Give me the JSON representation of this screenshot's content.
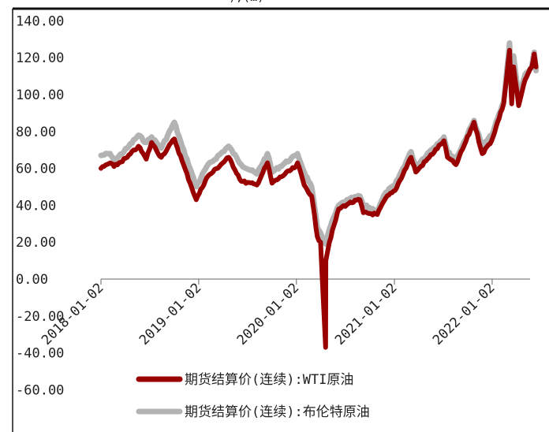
{
  "chart_data": {
    "type": "line",
    "title": "",
    "xlabel": "",
    "ylabel": "",
    "ylim": [
      -60,
      140
    ],
    "y_ticks": [
      {
        "value": 140,
        "label": "140.00"
      },
      {
        "value": 120,
        "label": "120.00"
      },
      {
        "value": 100,
        "label": "100.00"
      },
      {
        "value": 80,
        "label": "80.00"
      },
      {
        "value": 60,
        "label": "60.00"
      },
      {
        "value": 40,
        "label": "40.00"
      },
      {
        "value": 20,
        "label": "20.00"
      },
      {
        "value": 0,
        "label": "0.00"
      },
      {
        "value": -20,
        "label": "-20.00"
      },
      {
        "value": -40,
        "label": "-40.00"
      },
      {
        "value": -60,
        "label": "-60.00"
      }
    ],
    "x_ticks": [
      "2018-01-02",
      "2019-01-02",
      "2020-01-02",
      "2021-01-02",
      "2022-01-02"
    ],
    "xlim": [
      "2018-01-02",
      "2022-06-15"
    ],
    "legend_position": "bottom",
    "series": [
      {
        "name": "期货结算价(连续):布伦特原油",
        "color": "#b3b3b3",
        "points": [
          [
            "2018-01-02",
            67
          ],
          [
            "2018-02-05",
            68
          ],
          [
            "2018-02-20",
            64
          ],
          [
            "2018-04-10",
            71
          ],
          [
            "2018-05-22",
            78
          ],
          [
            "2018-06-20",
            74
          ],
          [
            "2018-07-10",
            77
          ],
          [
            "2018-08-15",
            71
          ],
          [
            "2018-10-03",
            85
          ],
          [
            "2018-11-01",
            72
          ],
          [
            "2018-12-01",
            60
          ],
          [
            "2018-12-24",
            50
          ],
          [
            "2019-02-01",
            61
          ],
          [
            "2019-04-24",
            72
          ],
          [
            "2019-06-10",
            62
          ],
          [
            "2019-08-07",
            57
          ],
          [
            "2019-09-16",
            68
          ],
          [
            "2019-10-03",
            58
          ],
          [
            "2019-12-31",
            67
          ],
          [
            "2020-01-06",
            68
          ],
          [
            "2020-01-31",
            58
          ],
          [
            "2020-02-28",
            50
          ],
          [
            "2020-03-20",
            28
          ],
          [
            "2020-04-01",
            25
          ],
          [
            "2020-04-21",
            19
          ],
          [
            "2020-05-04",
            27
          ],
          [
            "2020-06-08",
            40
          ],
          [
            "2020-07-15",
            43
          ],
          [
            "2020-08-26",
            45
          ],
          [
            "2020-09-08",
            40
          ],
          [
            "2020-10-30",
            37
          ],
          [
            "2020-12-01",
            47
          ],
          [
            "2021-01-04",
            51
          ],
          [
            "2021-03-05",
            69
          ],
          [
            "2021-03-23",
            61
          ],
          [
            "2021-05-12",
            69
          ],
          [
            "2021-07-06",
            77
          ],
          [
            "2021-07-19",
            69
          ],
          [
            "2021-08-20",
            65
          ],
          [
            "2021-10-26",
            86
          ],
          [
            "2021-11-26",
            72
          ],
          [
            "2021-12-31",
            78
          ],
          [
            "2022-02-14",
            96
          ],
          [
            "2022-03-08",
            128
          ],
          [
            "2022-03-16",
            98
          ],
          [
            "2022-03-23",
            121
          ],
          [
            "2022-04-11",
            98
          ],
          [
            "2022-05-05",
            111
          ],
          [
            "2022-05-30",
            115
          ],
          [
            "2022-06-08",
            123
          ],
          [
            "2022-06-15",
            113
          ]
        ]
      },
      {
        "name": "期货结算价(连续):WTI原油",
        "color": "#990000",
        "points": [
          [
            "2018-01-02",
            60
          ],
          [
            "2018-02-05",
            63
          ],
          [
            "2018-02-20",
            61
          ],
          [
            "2018-04-10",
            66
          ],
          [
            "2018-05-22",
            72
          ],
          [
            "2018-06-20",
            65
          ],
          [
            "2018-07-10",
            74
          ],
          [
            "2018-08-15",
            66
          ],
          [
            "2018-10-03",
            76
          ],
          [
            "2018-11-01",
            64
          ],
          [
            "2018-12-01",
            52
          ],
          [
            "2018-12-24",
            43
          ],
          [
            "2019-02-01",
            55
          ],
          [
            "2019-04-24",
            66
          ],
          [
            "2019-06-10",
            53
          ],
          [
            "2019-08-07",
            51
          ],
          [
            "2019-09-16",
            63
          ],
          [
            "2019-10-03",
            52
          ],
          [
            "2019-12-31",
            61
          ],
          [
            "2020-01-06",
            63
          ],
          [
            "2020-01-31",
            51
          ],
          [
            "2020-02-28",
            45
          ],
          [
            "2020-03-20",
            23
          ],
          [
            "2020-04-01",
            20
          ],
          [
            "2020-04-20",
            -37
          ],
          [
            "2020-04-21",
            10
          ],
          [
            "2020-05-04",
            20
          ],
          [
            "2020-06-08",
            38
          ],
          [
            "2020-07-15",
            41
          ],
          [
            "2020-08-26",
            43
          ],
          [
            "2020-09-08",
            36
          ],
          [
            "2020-10-30",
            35
          ],
          [
            "2020-12-01",
            44
          ],
          [
            "2021-01-04",
            48
          ],
          [
            "2021-03-05",
            66
          ],
          [
            "2021-03-23",
            58
          ],
          [
            "2021-05-12",
            66
          ],
          [
            "2021-07-06",
            75
          ],
          [
            "2021-07-19",
            66
          ],
          [
            "2021-08-20",
            62
          ],
          [
            "2021-10-26",
            85
          ],
          [
            "2021-11-26",
            68
          ],
          [
            "2021-12-31",
            75
          ],
          [
            "2022-02-14",
            95
          ],
          [
            "2022-03-08",
            124
          ],
          [
            "2022-03-16",
            95
          ],
          [
            "2022-03-23",
            115
          ],
          [
            "2022-04-11",
            94
          ],
          [
            "2022-05-05",
            108
          ],
          [
            "2022-05-30",
            115
          ],
          [
            "2022-06-08",
            122
          ],
          [
            "2022-06-15",
            115
          ]
        ]
      }
    ]
  },
  "header_fragment": "),(…)"
}
